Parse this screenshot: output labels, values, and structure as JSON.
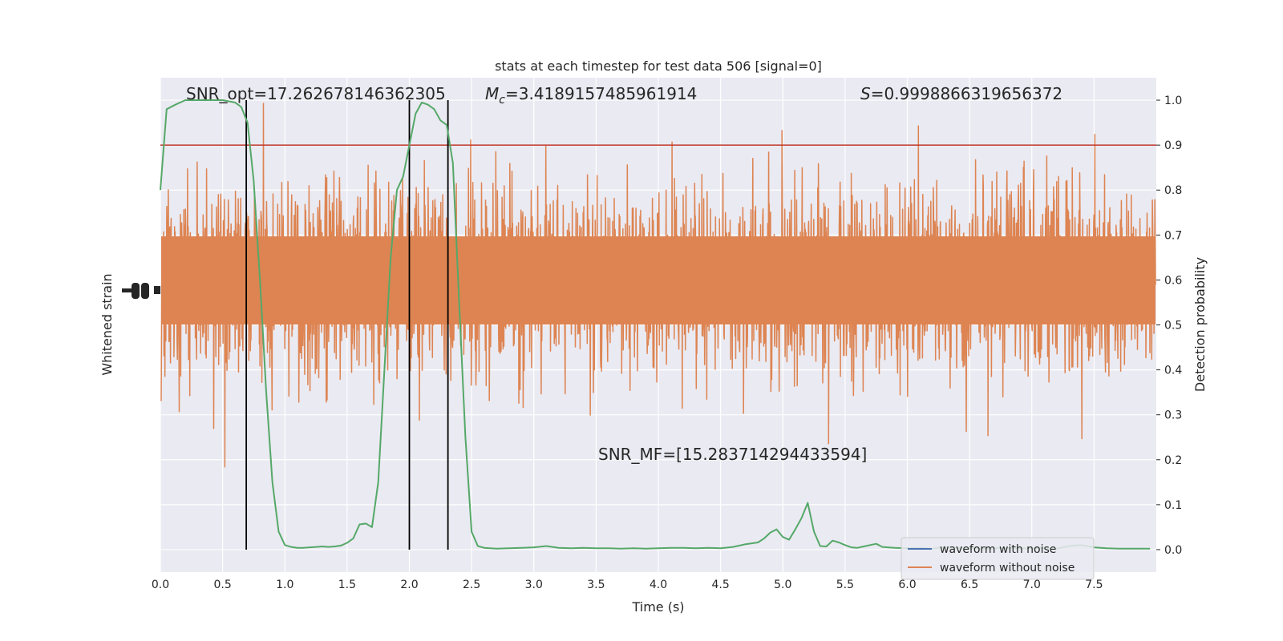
{
  "chart_data": {
    "type": "line",
    "title": "stats at each timestep for test data 506 [signal=0]",
    "xlabel": "Time (s)",
    "ylabel_left": "Whitened strain",
    "ylabel_right": "Detection probability",
    "xlim": [
      0.0,
      8.0
    ],
    "ylim_right": [
      -0.05,
      1.05
    ],
    "x_ticks": [
      "0.0",
      "0.5",
      "1.0",
      "1.5",
      "2.0",
      "2.5",
      "3.0",
      "3.5",
      "4.0",
      "4.5",
      "5.0",
      "5.5",
      "6.0",
      "6.5",
      "7.0",
      "7.5"
    ],
    "y_right_ticks": [
      "0.0",
      "0.1",
      "0.2",
      "0.3",
      "0.4",
      "0.5",
      "0.6",
      "0.7",
      "0.8",
      "0.9",
      "1.0"
    ],
    "grid": true,
    "legend_position": "bottom-right",
    "annotations": {
      "snr_opt": "SNR_opt=17.262678146362305",
      "mc_prefix": "M",
      "mc_sub": "c",
      "mc_value": "=3.4189157485961914",
      "s_prefix": "S",
      "s_value": "=0.9998866319656372",
      "snr_mf": "SNR_MF=[15.283714294433594]"
    },
    "threshold": {
      "y": 0.9,
      "color": "#c0392b"
    },
    "vertical_lines_x": [
      0.69,
      2.0,
      2.31
    ],
    "series": [
      {
        "name": "waveform with noise",
        "color": "#4c72b0"
      },
      {
        "name": "waveform without noise",
        "color": "#dd8452"
      }
    ],
    "probability_series": {
      "color": "#55a868",
      "x": [
        0.0,
        0.05,
        0.12,
        0.2,
        0.3,
        0.4,
        0.5,
        0.6,
        0.65,
        0.7,
        0.75,
        0.8,
        0.85,
        0.9,
        0.95,
        1.0,
        1.05,
        1.1,
        1.15,
        1.2,
        1.25,
        1.3,
        1.35,
        1.4,
        1.45,
        1.5,
        1.55,
        1.6,
        1.65,
        1.7,
        1.75,
        1.8,
        1.85,
        1.9,
        1.95,
        2.0,
        2.05,
        2.1,
        2.15,
        2.2,
        2.25,
        2.3,
        2.35,
        2.4,
        2.45,
        2.5,
        2.55,
        2.6,
        2.7,
        2.8,
        2.9,
        3.0,
        3.1,
        3.2,
        3.3,
        3.4,
        3.5,
        3.6,
        3.7,
        3.8,
        3.9,
        4.0,
        4.1,
        4.2,
        4.3,
        4.4,
        4.5,
        4.6,
        4.7,
        4.8,
        4.85,
        4.9,
        4.95,
        5.0,
        5.05,
        5.1,
        5.15,
        5.2,
        5.25,
        5.3,
        5.35,
        5.4,
        5.45,
        5.5,
        5.55,
        5.6,
        5.65,
        5.7,
        5.75,
        5.8,
        5.9,
        6.0,
        6.1,
        6.2,
        6.3,
        6.4,
        6.5,
        6.6,
        6.7,
        6.8,
        6.9,
        7.0,
        7.1,
        7.2,
        7.3,
        7.4,
        7.5,
        7.6,
        7.7,
        7.8,
        7.95
      ],
      "y": [
        0.8,
        0.98,
        0.99,
        1.0,
        1.0,
        1.0,
        1.0,
        0.995,
        0.985,
        0.95,
        0.82,
        0.6,
        0.35,
        0.15,
        0.04,
        0.01,
        0.006,
        0.004,
        0.004,
        0.005,
        0.006,
        0.007,
        0.006,
        0.007,
        0.009,
        0.015,
        0.025,
        0.056,
        0.058,
        0.05,
        0.15,
        0.4,
        0.65,
        0.8,
        0.83,
        0.9,
        0.97,
        0.995,
        0.99,
        0.98,
        0.955,
        0.945,
        0.86,
        0.55,
        0.25,
        0.04,
        0.008,
        0.004,
        0.002,
        0.003,
        0.004,
        0.005,
        0.008,
        0.004,
        0.003,
        0.004,
        0.003,
        0.003,
        0.002,
        0.003,
        0.002,
        0.003,
        0.004,
        0.004,
        0.003,
        0.004,
        0.003,
        0.006,
        0.012,
        0.016,
        0.025,
        0.038,
        0.045,
        0.028,
        0.022,
        0.045,
        0.07,
        0.104,
        0.04,
        0.008,
        0.007,
        0.02,
        0.016,
        0.01,
        0.005,
        0.004,
        0.007,
        0.01,
        0.013,
        0.006,
        0.004,
        0.003,
        0.004,
        0.002,
        0.005,
        0.004,
        0.003,
        0.002,
        0.003,
        0.004,
        0.002,
        0.003,
        0.004,
        0.002,
        0.008,
        0.01,
        0.005,
        0.003,
        0.002,
        0.002,
        0.002
      ]
    }
  }
}
